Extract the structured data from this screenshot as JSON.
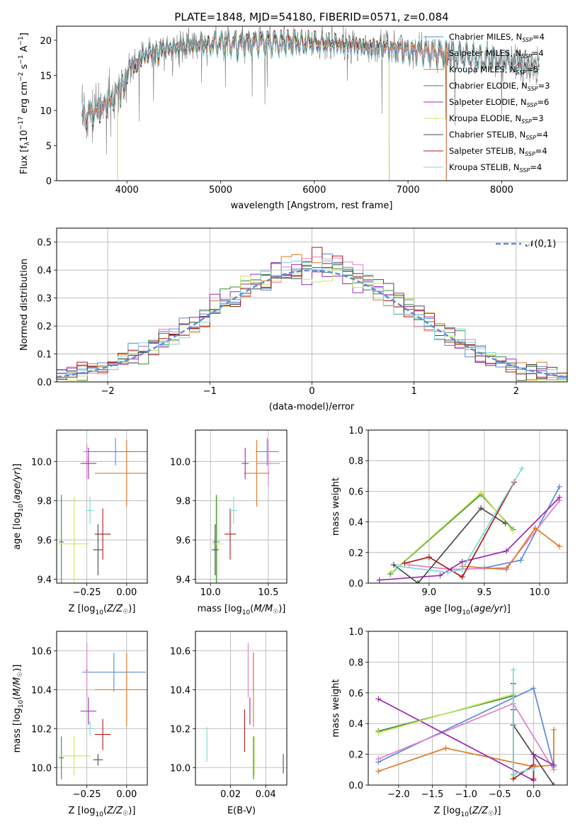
{
  "figure": {
    "title": "PLATE=1848, MJD=54180, FIBERID=0571, z=0.084"
  },
  "colors": {
    "Chabrier MILES": "#5b8bdc",
    "Salpeter MILES": "#e07ec8",
    "Kroupa MILES": "#e07822",
    "Chabrier ELODIE": "#3a8a3a",
    "Salpeter ELODIE": "#9a2bb0",
    "Kroupa ELODIE": "#c8e85a",
    "Chabrier STELIB": "#4a4a4a",
    "Salpeter STELIB": "#a81c1c",
    "Kroupa STELIB": "#7fd6dc",
    "normal": "#5b8bdc",
    "grid": "#b0b0b0"
  },
  "chart_data": [
    {
      "id": "spectrum",
      "type": "line",
      "xlabel": "wavelength [Angstrom, rest frame]",
      "ylabel": "Flux [f_λ10^-17 erg cm^-2 s^-1 A^-1]",
      "xlim": [
        3250,
        8700
      ],
      "ylim": [
        0,
        22
      ],
      "xticks": [
        4000,
        5000,
        6000,
        7000,
        8000
      ],
      "yticks": [
        0,
        5,
        10,
        15,
        20
      ],
      "grid": false,
      "legend_position": "right",
      "legend": [
        {
          "model": "Chabrier MILES",
          "label": "Chabrier MILES, N",
          "sub": "SSP",
          "suffix": "=4"
        },
        {
          "model": "Salpeter MILES",
          "label": "Salpeter MILES, N",
          "sub": "SSP",
          "suffix": "=4"
        },
        {
          "model": "Kroupa MILES",
          "label": "Kroupa MILES, N",
          "sub": "SSP",
          "suffix": "=5"
        },
        {
          "model": "Chabrier ELODIE",
          "label": "Chabrier ELODIE, N",
          "sub": "SSP",
          "suffix": "=3"
        },
        {
          "model": "Salpeter ELODIE",
          "label": "Salpeter ELODIE, N",
          "sub": "SSP",
          "suffix": "=6"
        },
        {
          "model": "Kroupa ELODIE",
          "label": "Kroupa ELODIE, N",
          "sub": "SSP",
          "suffix": "=3"
        },
        {
          "model": "Chabrier STELIB",
          "label": "Chabrier STELIB, N",
          "sub": "SSP",
          "suffix": "=4"
        },
        {
          "model": "Salpeter STELIB",
          "label": "Salpeter STELIB, N",
          "sub": "SSP",
          "suffix": "=4"
        },
        {
          "model": "Kroupa STELIB",
          "label": "Kroupa STELIB, N",
          "sub": "SSP",
          "suffix": "=4"
        }
      ],
      "continuum": {
        "wavelength": [
          3520,
          3700,
          3850,
          3950,
          4050,
          4150,
          4300,
          4500,
          4800,
          5100,
          5500,
          6000,
          6500,
          7000,
          7500,
          8000,
          8400
        ],
        "flux": [
          9.0,
          10.0,
          11.5,
          14.0,
          16.5,
          17.5,
          18.5,
          19.0,
          19.5,
          19.6,
          19.8,
          19.7,
          19.3,
          18.6,
          17.9,
          17.0,
          16.2
        ]
      },
      "model_ranges": [
        {
          "model": "Chabrier MILES",
          "wmin": 3540,
          "wmax": 7410
        },
        {
          "model": "Salpeter MILES",
          "wmin": 3540,
          "wmax": 7410
        },
        {
          "model": "Kroupa MILES",
          "wmin": 3540,
          "wmax": 7410
        },
        {
          "model": "Chabrier ELODIE",
          "wmin": 3900,
          "wmax": 6800
        },
        {
          "model": "Salpeter ELODIE",
          "wmin": 3900,
          "wmax": 6800
        },
        {
          "model": "Kroupa ELODIE",
          "wmin": 3900,
          "wmax": 6800
        },
        {
          "model": "Chabrier STELIB",
          "wmin": 3520,
          "wmax": 8400
        },
        {
          "model": "Salpeter STELIB",
          "wmin": 3520,
          "wmax": 8400
        },
        {
          "model": "Kroupa STELIB",
          "wmin": 3520,
          "wmax": 8400
        }
      ]
    },
    {
      "id": "residuals",
      "type": "area",
      "xlabel": "(data-model)/error",
      "ylabel": "Normed distribution",
      "xlim": [
        -2.5,
        2.5
      ],
      "ylim": [
        0,
        0.55
      ],
      "xticks": [
        -2,
        -1,
        0,
        1,
        2
      ],
      "yticks": [
        0,
        0.1,
        0.2,
        0.3,
        0.4,
        0.5
      ],
      "grid": true,
      "legend_position": "top-right",
      "legend_label": "𝒩(0,1)",
      "bin_width": 0.1,
      "normal": {
        "mean": 0,
        "sigma": 1
      }
    },
    {
      "id": "age-Z",
      "type": "scatter",
      "xlabel": "Z [log10(Z/Z☉)]",
      "ylabel": "age  [log10(age/yr)]",
      "xlim": [
        -0.44,
        0.13
      ],
      "ylim": [
        9.38,
        10.16
      ],
      "xticks": [
        -0.25,
        0.0
      ],
      "yticks": [
        9.4,
        9.6,
        9.8,
        10.0
      ],
      "grid": true,
      "points": [
        {
          "model": "Chabrier MILES",
          "x": -0.07,
          "y": 10.05,
          "xerr": 0.2,
          "yerr": 0.07
        },
        {
          "model": "Salpeter MILES",
          "x": -0.25,
          "y": 10.0,
          "xerr": 0.01,
          "yerr": 0.09
        },
        {
          "model": "Kroupa MILES",
          "x": 0.0,
          "y": 9.94,
          "xerr": 0.2,
          "yerr": 0.17
        },
        {
          "model": "Chabrier ELODIE",
          "x": -0.41,
          "y": 9.59,
          "xerr": 0.015,
          "yerr": 0.24
        },
        {
          "model": "Salpeter ELODIE",
          "x": -0.24,
          "y": 9.99,
          "xerr": 0.05,
          "yerr": 0.08
        },
        {
          "model": "Kroupa ELODIE",
          "x": -0.33,
          "y": 9.58,
          "xerr": 0.1,
          "yerr": 0.24
        },
        {
          "model": "Chabrier STELIB",
          "x": -0.18,
          "y": 9.55,
          "xerr": 0.03,
          "yerr": 0.13
        },
        {
          "model": "Salpeter STELIB",
          "x": -0.15,
          "y": 9.63,
          "xerr": 0.05,
          "yerr": 0.13
        },
        {
          "model": "Kroupa STELIB",
          "x": -0.23,
          "y": 9.75,
          "xerr": 0.025,
          "yerr": 0.07
        }
      ]
    },
    {
      "id": "age-mass",
      "type": "scatter",
      "xlabel": "mass [log10(M/M☉)]",
      "ylabel": "",
      "xlim": [
        9.87,
        10.66
      ],
      "ylim": [
        9.38,
        10.16
      ],
      "xticks": [
        10.0,
        10.5
      ],
      "yticks": [
        9.4,
        9.6,
        9.8,
        10.0
      ],
      "grid": true,
      "points": [
        {
          "model": "Chabrier MILES",
          "x": 10.49,
          "y": 10.05,
          "xerr": 0.1,
          "yerr": 0.07
        },
        {
          "model": "Salpeter MILES",
          "x": 10.5,
          "y": 9.99,
          "xerr": 0.1,
          "yerr": 0.12
        },
        {
          "model": "Kroupa MILES",
          "x": 10.4,
          "y": 9.94,
          "xerr": 0.11,
          "yerr": 0.17
        },
        {
          "model": "Chabrier ELODIE",
          "x": 10.05,
          "y": 9.59,
          "xerr": 0.03,
          "yerr": 0.24
        },
        {
          "model": "Salpeter ELODIE",
          "x": 10.3,
          "y": 9.99,
          "xerr": 0.03,
          "yerr": 0.08
        },
        {
          "model": "Kroupa ELODIE",
          "x": 10.06,
          "y": 9.58,
          "xerr": 0.05,
          "yerr": 0.24
        },
        {
          "model": "Chabrier STELIB",
          "x": 10.04,
          "y": 9.55,
          "xerr": 0.03,
          "yerr": 0.13
        },
        {
          "model": "Salpeter STELIB",
          "x": 10.17,
          "y": 9.63,
          "xerr": 0.05,
          "yerr": 0.13
        },
        {
          "model": "Kroupa STELIB",
          "x": 10.2,
          "y": 9.75,
          "xerr": 0.03,
          "yerr": 0.07
        }
      ]
    },
    {
      "id": "massweight-age",
      "type": "line",
      "xlabel": "age  [log10(age/yr)]",
      "ylabel": "mass weight",
      "xlim": [
        8.45,
        10.25
      ],
      "ylim": [
        0,
        1
      ],
      "xticks": [
        9.0,
        9.5,
        10.0
      ],
      "yticks": [
        0.0,
        0.2,
        0.4,
        0.6,
        0.8,
        1.0
      ],
      "grid": true,
      "series": [
        {
          "model": "Chabrier MILES",
          "x": [
            9.5,
            9.83,
            10.18
          ],
          "y": [
            0.1,
            0.15,
            0.63
          ]
        },
        {
          "model": "Salpeter MILES",
          "x": [
            8.82,
            9.2,
            9.7,
            10.18
          ],
          "y": [
            0.12,
            0.09,
            0.1,
            0.54
          ]
        },
        {
          "model": "Kroupa MILES",
          "x": [
            9.3,
            9.7,
            9.96,
            10.18
          ],
          "y": [
            0.11,
            0.09,
            0.36,
            0.24
          ]
        },
        {
          "model": "Chabrier ELODIE",
          "x": [
            8.65,
            9.47,
            9.76
          ],
          "y": [
            0.06,
            0.58,
            0.35
          ]
        },
        {
          "model": "Salpeter ELODIE",
          "x": [
            8.55,
            9.1,
            9.3,
            9.7,
            10.18
          ],
          "y": [
            0.02,
            0.05,
            0.14,
            0.21,
            0.56
          ]
        },
        {
          "model": "Kroupa ELODIE",
          "x": [
            8.66,
            9.47,
            9.76
          ],
          "y": [
            0.07,
            0.59,
            0.34
          ]
        },
        {
          "model": "Chabrier STELIB",
          "x": [
            8.68,
            8.9,
            9.47,
            9.69
          ],
          "y": [
            0.12,
            0.0,
            0.49,
            0.39
          ]
        },
        {
          "model": "Salpeter STELIB",
          "x": [
            8.78,
            9.0,
            9.3,
            9.77
          ],
          "y": [
            0.13,
            0.17,
            0.04,
            0.66
          ]
        },
        {
          "model": "Kroupa STELIB",
          "x": [
            8.72,
            9.17,
            9.3,
            9.84
          ],
          "y": [
            0.11,
            0.07,
            0.09,
            0.75
          ]
        }
      ]
    },
    {
      "id": "mass-Z",
      "type": "scatter",
      "xlabel": "Z [log10(Z/Z☉)]",
      "ylabel": "mass [log10(M/M☉)]",
      "xlim": [
        -0.44,
        0.13
      ],
      "ylim": [
        9.91,
        10.7
      ],
      "xticks": [
        -0.25,
        0.0
      ],
      "yticks": [
        10.0,
        10.2,
        10.4,
        10.6
      ],
      "grid": true,
      "points": [
        {
          "model": "Chabrier MILES",
          "x": -0.08,
          "y": 10.49,
          "xerr": 0.2,
          "yerr": 0.1
        },
        {
          "model": "Salpeter MILES",
          "x": -0.25,
          "y": 10.5,
          "xerr": 0.01,
          "yerr": 0.14
        },
        {
          "model": "Kroupa MILES",
          "x": 0.0,
          "y": 10.4,
          "xerr": 0.2,
          "yerr": 0.19
        },
        {
          "model": "Chabrier ELODIE",
          "x": -0.41,
          "y": 10.05,
          "xerr": 0.015,
          "yerr": 0.11
        },
        {
          "model": "Salpeter ELODIE",
          "x": -0.24,
          "y": 10.29,
          "xerr": 0.05,
          "yerr": 0.07
        },
        {
          "model": "Kroupa ELODIE",
          "x": -0.33,
          "y": 10.06,
          "xerr": 0.1,
          "yerr": 0.1
        },
        {
          "model": "Chabrier STELIB",
          "x": -0.18,
          "y": 10.04,
          "xerr": 0.03,
          "yerr": 0.03
        },
        {
          "model": "Salpeter STELIB",
          "x": -0.15,
          "y": 10.17,
          "xerr": 0.05,
          "yerr": 0.08
        },
        {
          "model": "Kroupa STELIB",
          "x": -0.23,
          "y": 10.2,
          "xerr": 0.025,
          "yerr": 0.04
        }
      ]
    },
    {
      "id": "mass-EBV",
      "type": "scatter",
      "xlabel": "E(B-V)",
      "ylabel": "",
      "xlim": [
        0.0,
        0.052
      ],
      "ylim": [
        9.91,
        10.7
      ],
      "xticks": [
        0.02,
        0.04
      ],
      "yticks": [
        10.0,
        10.2,
        10.4,
        10.6
      ],
      "grid": true,
      "points": [
        {
          "model": "Chabrier MILES",
          "x": 0.033,
          "y": 10.49,
          "xerr": 0.0,
          "yerr": 0.1
        },
        {
          "model": "Salpeter MILES",
          "x": 0.03,
          "y": 10.5,
          "xerr": 0.0,
          "yerr": 0.14
        },
        {
          "model": "Kroupa MILES",
          "x": 0.033,
          "y": 10.4,
          "xerr": 0.0,
          "yerr": 0.19
        },
        {
          "model": "Chabrier ELODIE",
          "x": 0.033,
          "y": 10.05,
          "xerr": 0.0,
          "yerr": 0.11
        },
        {
          "model": "Salpeter ELODIE",
          "x": 0.031,
          "y": 10.29,
          "xerr": 0.0,
          "yerr": 0.07
        },
        {
          "model": "Kroupa ELODIE",
          "x": 0.0335,
          "y": 10.06,
          "xerr": 0.0,
          "yerr": 0.1
        },
        {
          "model": "Chabrier STELIB",
          "x": 0.05,
          "y": 10.02,
          "xerr": 0.0,
          "yerr": 0.05
        },
        {
          "model": "Salpeter STELIB",
          "x": 0.028,
          "y": 10.19,
          "xerr": 0.0,
          "yerr": 0.11
        },
        {
          "model": "Kroupa STELIB",
          "x": 0.0065,
          "y": 10.12,
          "xerr": 0.0,
          "yerr": 0.09
        }
      ]
    },
    {
      "id": "massweight-Z",
      "type": "line",
      "xlabel": "Z [log10(Z/Z☉)]",
      "ylabel": "mass weight",
      "xlim": [
        -2.45,
        0.5
      ],
      "ylim": [
        0,
        1
      ],
      "xticks": [
        -2.0,
        -1.5,
        -1.0,
        -0.5,
        0.0
      ],
      "yticks": [
        0.0,
        0.2,
        0.4,
        0.6,
        0.8,
        1.0
      ],
      "grid": true,
      "series": [
        {
          "model": "Chabrier MILES",
          "x": [
            -2.3,
            0.0,
            0.3
          ],
          "y": [
            0.15,
            0.63,
            0.12
          ]
        },
        {
          "model": "Salpeter MILES",
          "x": [
            -2.3,
            -0.3,
            0.3
          ],
          "y": [
            0.17,
            0.53,
            0.1
          ]
        },
        {
          "model": "Kroupa MILES",
          "x": [
            -2.3,
            -1.3,
            0.0,
            0.3,
            0.3
          ],
          "y": [
            0.09,
            0.24,
            0.12,
            0.13,
            0.36
          ]
        },
        {
          "model": "Chabrier ELODIE",
          "x": [
            -2.3,
            -0.3,
            -0.3
          ],
          "y": [
            0.35,
            0.58,
            0.07
          ]
        },
        {
          "model": "Salpeter ELODIE",
          "x": [
            -2.3,
            0.0,
            0.0,
            0.3
          ],
          "y": [
            0.56,
            0.03,
            0.2,
            0.13
          ]
        },
        {
          "model": "Kroupa ELODIE",
          "x": [
            -2.3,
            -0.3,
            -0.3
          ],
          "y": [
            0.34,
            0.59,
            0.06
          ]
        },
        {
          "model": "Chabrier STELIB",
          "x": [
            -0.3,
            -0.3,
            0.3
          ],
          "y": [
            0.49,
            0.39,
            0.0
          ]
        },
        {
          "model": "Salpeter STELIB",
          "x": [
            -0.3,
            -0.3,
            0.0,
            0.0
          ],
          "y": [
            0.66,
            0.04,
            0.13,
            0.04
          ]
        },
        {
          "model": "Kroupa STELIB",
          "x": [
            -0.3,
            -0.3,
            0.0
          ],
          "y": [
            0.75,
            0.07,
            0.11
          ]
        }
      ]
    }
  ]
}
